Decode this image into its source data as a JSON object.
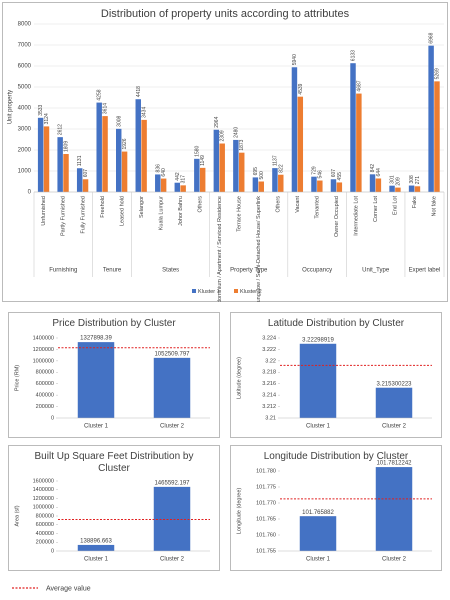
{
  "chart_data": [
    {
      "type": "grouped-bar",
      "title": "Distribution of property units according to attributes",
      "ylabel": "Unit property",
      "categories": [
        "Unfurnished",
        "Partly Furnished",
        "Fully Furnished",
        "Freehold",
        "Leased hold",
        "Selangor",
        "Kuala Lumpur",
        "Johor Bahru",
        "Others",
        "Condominium / Apartment / Serviced Residence",
        "Terrace House",
        "Link Bungalow / Semi-Detached House/ Superlink",
        "Others",
        "Vacant",
        "Tenanted",
        "Owner Occupied",
        "Intermediate Lot",
        "Corner Lot",
        "End Lot",
        "Fake",
        "Not fake"
      ],
      "category_groups": [
        "Furnishing",
        "Furnishing",
        "Furnishing",
        "Tenure",
        "Tenure",
        "States",
        "States",
        "States",
        "States",
        "Property Type",
        "Property Type",
        "Property Type",
        "Property Type",
        "Occupancy",
        "Occupancy",
        "Occupancy",
        "Unit_Type",
        "Unit_Type",
        "Unit_Type",
        "Expert label",
        "Expert label"
      ],
      "series": [
        {
          "name": "Kluster 1",
          "color": "#4472c4",
          "values": [
            3533,
            2612,
            1131,
            4258,
            3008,
            4418,
            836,
            442,
            1580,
            2964,
            2480,
            695,
            1137,
            5940,
            729,
            607,
            6133,
            842,
            301,
            308,
            6968
          ]
        },
        {
          "name": "Kluster 2",
          "color": "#ed7d31",
          "values": [
            3124,
            1809,
            607,
            3614,
            1926,
            3434,
            640,
            317,
            1149,
            2309,
            1873,
            500,
            822,
            4539,
            546,
            455,
            4687,
            644,
            209,
            271,
            5269
          ]
        }
      ],
      "ylim": [
        0,
        8000
      ],
      "yticks": [
        0,
        1000,
        2000,
        3000,
        4000,
        5000,
        6000,
        7000,
        8000
      ],
      "grid": true,
      "legend": "bottom"
    },
    {
      "type": "bar",
      "title": "Price Distribution by Cluster",
      "ylabel": "Price (RM)",
      "categories": [
        "Cluster 1",
        "Cluster 2"
      ],
      "values": [
        1327898.39,
        1052509.797
      ],
      "color": "#4472c4",
      "average": 1230000,
      "ylim": [
        0,
        1400000
      ],
      "yticks": [
        0,
        200000,
        400000,
        600000,
        800000,
        1000000,
        1200000,
        1400000
      ]
    },
    {
      "type": "bar",
      "title": "Latitude Distribution by Cluster",
      "ylabel": "Latitude (degree)",
      "categories": [
        "Cluster 1",
        "Cluster 2"
      ],
      "values": [
        3.22298919,
        3.215300223
      ],
      "color": "#4472c4",
      "average": 3.2192,
      "ylim": [
        3.21,
        3.224
      ],
      "yticks": [
        3.21,
        3.212,
        3.214,
        3.216,
        3.218,
        3.22,
        3.222,
        3.224
      ]
    },
    {
      "type": "bar",
      "title": "Built Up Square Feet Distribution by Cluster",
      "ylabel": "Area (sf)",
      "categories": [
        "Cluster 1",
        "Cluster 2"
      ],
      "values": [
        138896.663,
        1465592.197
      ],
      "color": "#4472c4",
      "average": 720000,
      "ylim": [
        0,
        1600000
      ],
      "yticks": [
        0,
        200000,
        400000,
        600000,
        800000,
        1000000,
        1200000,
        1400000,
        1600000
      ]
    },
    {
      "type": "bar",
      "title": "Longitude Distribution by Cluster",
      "ylabel": "Longitude (degree)",
      "categories": [
        "Cluster 1",
        "Cluster 2"
      ],
      "values": [
        101.765882,
        101.7812242
      ],
      "color": "#4472c4",
      "average": 101.7713,
      "ylim": [
        101.755,
        101.78
      ],
      "yticks": [
        101.755,
        {
          "value": 101.76,
          "label": "101.760"
        },
        101.765,
        {
          "value": 101.77,
          "label": "101.770"
        },
        101.775,
        {
          "value": 101.78,
          "label": "101.780"
        }
      ]
    }
  ],
  "legend": {
    "label": "Average value",
    "color": "#e02020"
  }
}
